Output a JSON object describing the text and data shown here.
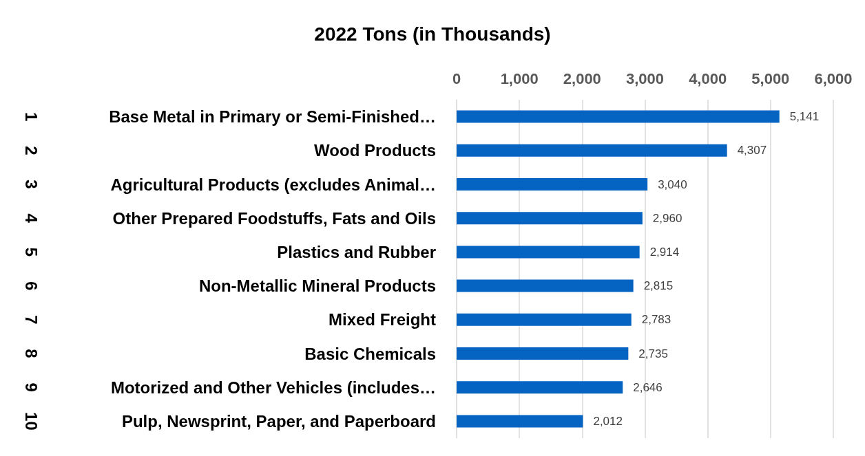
{
  "chart_data": {
    "type": "bar",
    "orientation": "horizontal",
    "title": "2022 Tons (in Thousands)",
    "categories": [
      "Base Metal in Primary or Semi-Finished…",
      "Wood Products",
      "Agricultural Products (excludes Animal…",
      "Other Prepared Foodstuffs, Fats and Oils",
      "Plastics and Rubber",
      "Non-Metallic Mineral Products",
      "Mixed Freight",
      "Basic Chemicals",
      "Motorized and Other Vehicles (includes…",
      "Pulp, Newsprint, Paper, and Paperboard"
    ],
    "values": [
      5141,
      4307,
      3040,
      2960,
      2914,
      2815,
      2783,
      2735,
      2646,
      2012
    ],
    "value_labels": [
      "5,141",
      "4,307",
      "3,040",
      "2,960",
      "2,914",
      "2,815",
      "2,783",
      "2,735",
      "2,646",
      "2,012"
    ],
    "color": "#0563c1",
    "xlim": [
      0,
      6000
    ],
    "xticks": [
      {
        "value": 0,
        "label": "0"
      },
      {
        "value": 1000,
        "label": "1,000"
      },
      {
        "value": 2000,
        "label": "2,000"
      },
      {
        "value": 3000,
        "label": "3,000"
      },
      {
        "value": 4000,
        "label": "4,000"
      },
      {
        "value": 5000,
        "label": "5,000"
      },
      {
        "value": 6000,
        "label": "6,000"
      }
    ],
    "grid": "x",
    "annotations": [
      "1",
      "2",
      "3",
      "4",
      "5",
      "6",
      "7",
      "8",
      "9",
      "10"
    ]
  }
}
